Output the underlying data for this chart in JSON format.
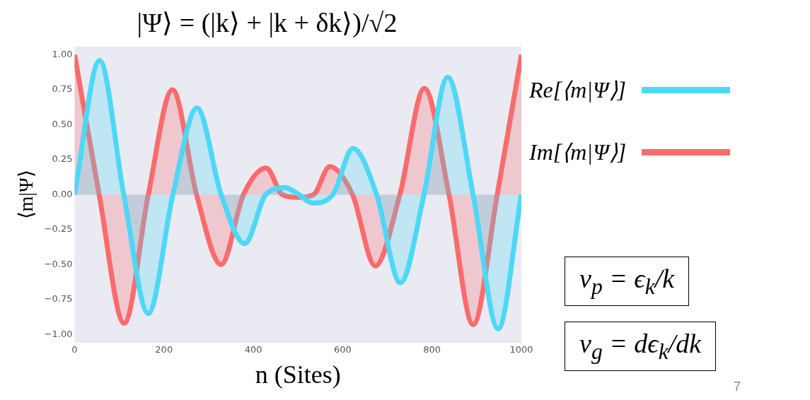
{
  "chart_data": {
    "type": "area",
    "title": "|Ψ⟩ = (|k⟩ + |k + δk⟩)/√2",
    "xlabel": "n (Sites)",
    "ylabel": "⟨m|Ψ⟩",
    "xlim": [
      0,
      1000
    ],
    "xticks": [
      0,
      200,
      400,
      600,
      800,
      1000
    ],
    "ylim": [
      -1.06,
      1.06
    ],
    "yticks": [
      {
        "value": -1,
        "label": "−1.00"
      },
      {
        "value": -0.75,
        "label": "−0.75"
      },
      {
        "value": -0.5,
        "label": "−0.50"
      },
      {
        "value": -0.25,
        "label": "−0.25"
      },
      {
        "value": 0,
        "label": "0.00"
      },
      {
        "value": 0.25,
        "label": "0.25"
      },
      {
        "value": 0.5,
        "label": "0.50"
      },
      {
        "value": 0.75,
        "label": "0.75"
      },
      {
        "value": 1,
        "label": "1.00"
      }
    ],
    "grid": false,
    "legend": "right",
    "line_style": "solid",
    "marker": "none",
    "series": [
      {
        "name": "Re[⟨m|Ψ⟩]",
        "color": "#4dd8f7",
        "x": [
          0,
          56,
          110,
          165,
          220,
          274,
          328,
          381,
          428,
          472,
          502,
          532,
          578,
          623,
          676,
          729,
          782,
          835,
          892,
          948,
          1000
        ],
        "values": [
          0,
          0.96,
          0,
          -0.85,
          0,
          0.62,
          0,
          -0.35,
          0,
          0.05,
          0,
          -0.06,
          0,
          0.33,
          0,
          -0.63,
          0,
          0.84,
          0,
          -0.96,
          0
        ]
      },
      {
        "name": "Im[⟨m|Ψ⟩]",
        "color": "#fa6b6b",
        "x": [
          0,
          55,
          111,
          165,
          219,
          273,
          328,
          378,
          429,
          465,
          500,
          535,
          571,
          622,
          673,
          728,
          783,
          838,
          892,
          946,
          1000
        ],
        "values": [
          1,
          0,
          -0.92,
          0,
          0.75,
          0,
          -0.5,
          0,
          0.19,
          0,
          -0.02,
          0,
          0.2,
          0,
          -0.51,
          0,
          0.76,
          0,
          -0.93,
          0,
          1
        ]
      }
    ],
    "annotations": [
      "v$_{p}$ = ϵ$_{k}$/k",
      "v$_{g}$ = dϵ$_{k}$/dk",
      "7"
    ]
  }
}
